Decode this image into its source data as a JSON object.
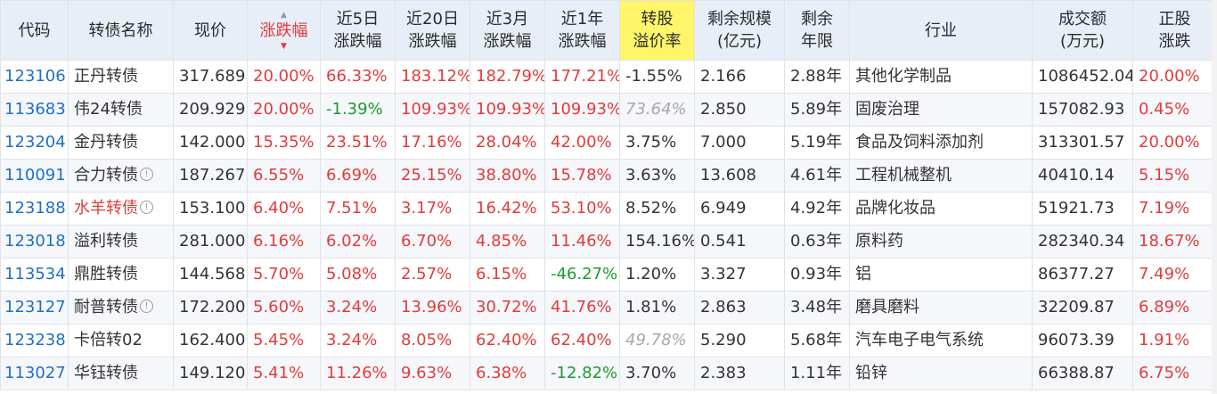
{
  "columns": [
    {
      "line1": "代码",
      "line2": ""
    },
    {
      "line1": "转债名称",
      "line2": ""
    },
    {
      "line1": "现价",
      "line2": ""
    },
    {
      "line1": "涨跌幅",
      "line2": ""
    },
    {
      "line1": "近5日",
      "line2": "涨跌幅"
    },
    {
      "line1": "近20日",
      "line2": "涨跌幅"
    },
    {
      "line1": "近3月",
      "line2": "涨跌幅"
    },
    {
      "line1": "近1年",
      "line2": "涨跌幅"
    },
    {
      "line1": "转股",
      "line2": "溢价率"
    },
    {
      "line1": "剩余规模",
      "line2": "(亿元)"
    },
    {
      "line1": "剩余",
      "line2": "年限"
    },
    {
      "line1": "行业",
      "line2": ""
    },
    {
      "line1": "成交额",
      "line2": "(万元)"
    },
    {
      "line1": "正股",
      "line2": "涨跌"
    }
  ],
  "sort_icon": {
    "up": "▲",
    "down": "▼"
  },
  "info_icon_glyph": "!",
  "rows": [
    {
      "code": "123106",
      "name": "正丹转债",
      "price": "317.689",
      "chg": "20.00%",
      "d5": "66.33%",
      "d20": "183.12%",
      "m3": "182.79%",
      "y1": "177.21%",
      "prem": "-1.55%",
      "scale": "2.166",
      "years": "2.88年",
      "industry": "其他化学制品",
      "amount": "1086452.04",
      "stock": "20.00%"
    },
    {
      "code": "113683",
      "name": "伟24转债",
      "price": "209.929",
      "chg": "20.00%",
      "d5": "-1.39%",
      "d20": "109.93%",
      "m3": "109.93%",
      "y1": "109.93%",
      "prem": "73.64%",
      "scale": "2.850",
      "years": "5.89年",
      "industry": "固废治理",
      "amount": "157082.93",
      "stock": "0.45%"
    },
    {
      "code": "123204",
      "name": "金丹转债",
      "price": "142.000",
      "chg": "15.35%",
      "d5": "23.51%",
      "d20": "17.16%",
      "m3": "28.04%",
      "y1": "42.00%",
      "prem": "3.75%",
      "scale": "7.000",
      "years": "5.19年",
      "industry": "食品及饲料添加剂",
      "amount": "313301.57",
      "stock": "20.00%"
    },
    {
      "code": "110091",
      "name": "合力转债",
      "price": "187.267",
      "chg": "6.55%",
      "d5": "6.69%",
      "d20": "25.15%",
      "m3": "38.80%",
      "y1": "15.78%",
      "prem": "3.63%",
      "scale": "13.608",
      "years": "4.61年",
      "industry": "工程机械整机",
      "amount": "40410.14",
      "stock": "5.15%"
    },
    {
      "code": "123188",
      "name": "水羊转债",
      "price": "153.100",
      "chg": "6.40%",
      "d5": "7.51%",
      "d20": "3.17%",
      "m3": "16.42%",
      "y1": "53.10%",
      "prem": "8.52%",
      "scale": "6.949",
      "years": "4.92年",
      "industry": "品牌化妆品",
      "amount": "51921.73",
      "stock": "7.19%"
    },
    {
      "code": "123018",
      "name": "溢利转债",
      "price": "281.000",
      "chg": "6.16%",
      "d5": "6.02%",
      "d20": "6.70%",
      "m3": "4.85%",
      "y1": "11.46%",
      "prem": "154.16%",
      "scale": "0.541",
      "years": "0.63年",
      "industry": "原料药",
      "amount": "282340.34",
      "stock": "18.67%"
    },
    {
      "code": "113534",
      "name": "鼎胜转债",
      "price": "144.568",
      "chg": "5.70%",
      "d5": "5.08%",
      "d20": "2.57%",
      "m3": "6.15%",
      "y1": "-46.27%",
      "prem": "1.20%",
      "scale": "3.327",
      "years": "0.93年",
      "industry": "铝",
      "amount": "86377.27",
      "stock": "7.49%"
    },
    {
      "code": "123127",
      "name": "耐普转债",
      "price": "172.200",
      "chg": "5.60%",
      "d5": "3.24%",
      "d20": "13.96%",
      "m3": "30.72%",
      "y1": "41.76%",
      "prem": "1.81%",
      "scale": "2.863",
      "years": "3.48年",
      "industry": "磨具磨料",
      "amount": "32209.87",
      "stock": "6.89%"
    },
    {
      "code": "123238",
      "name": "卡倍转02",
      "price": "162.400",
      "chg": "5.45%",
      "d5": "3.24%",
      "d20": "8.05%",
      "m3": "62.40%",
      "y1": "62.40%",
      "prem": "49.78%",
      "scale": "5.290",
      "years": "5.68年",
      "industry": "汽车电子电气系统",
      "amount": "96073.39",
      "stock": "1.91%"
    },
    {
      "code": "113027",
      "name": "华钰转债",
      "price": "149.120",
      "chg": "5.41%",
      "d5": "11.26%",
      "d20": "9.63%",
      "m3": "6.38%",
      "y1": "-12.82%",
      "prem": "3.70%",
      "scale": "2.383",
      "years": "1.11年",
      "industry": "铅锌",
      "amount": "66388.87",
      "stock": "6.75%"
    }
  ],
  "row_styles": {
    "gray_italic_premium_rows": [
      1,
      8
    ],
    "name_highlight_rows": [
      4
    ],
    "info_icon_rows": [
      3,
      4,
      7
    ]
  },
  "colors": {
    "up": "#e23b3b",
    "down": "#1e9a2e",
    "code": "#1f6fc4",
    "header_bg": "#e7eef8",
    "highlight_header_bg": "#fff56a",
    "muted_premium": "#a7a7a7"
  }
}
